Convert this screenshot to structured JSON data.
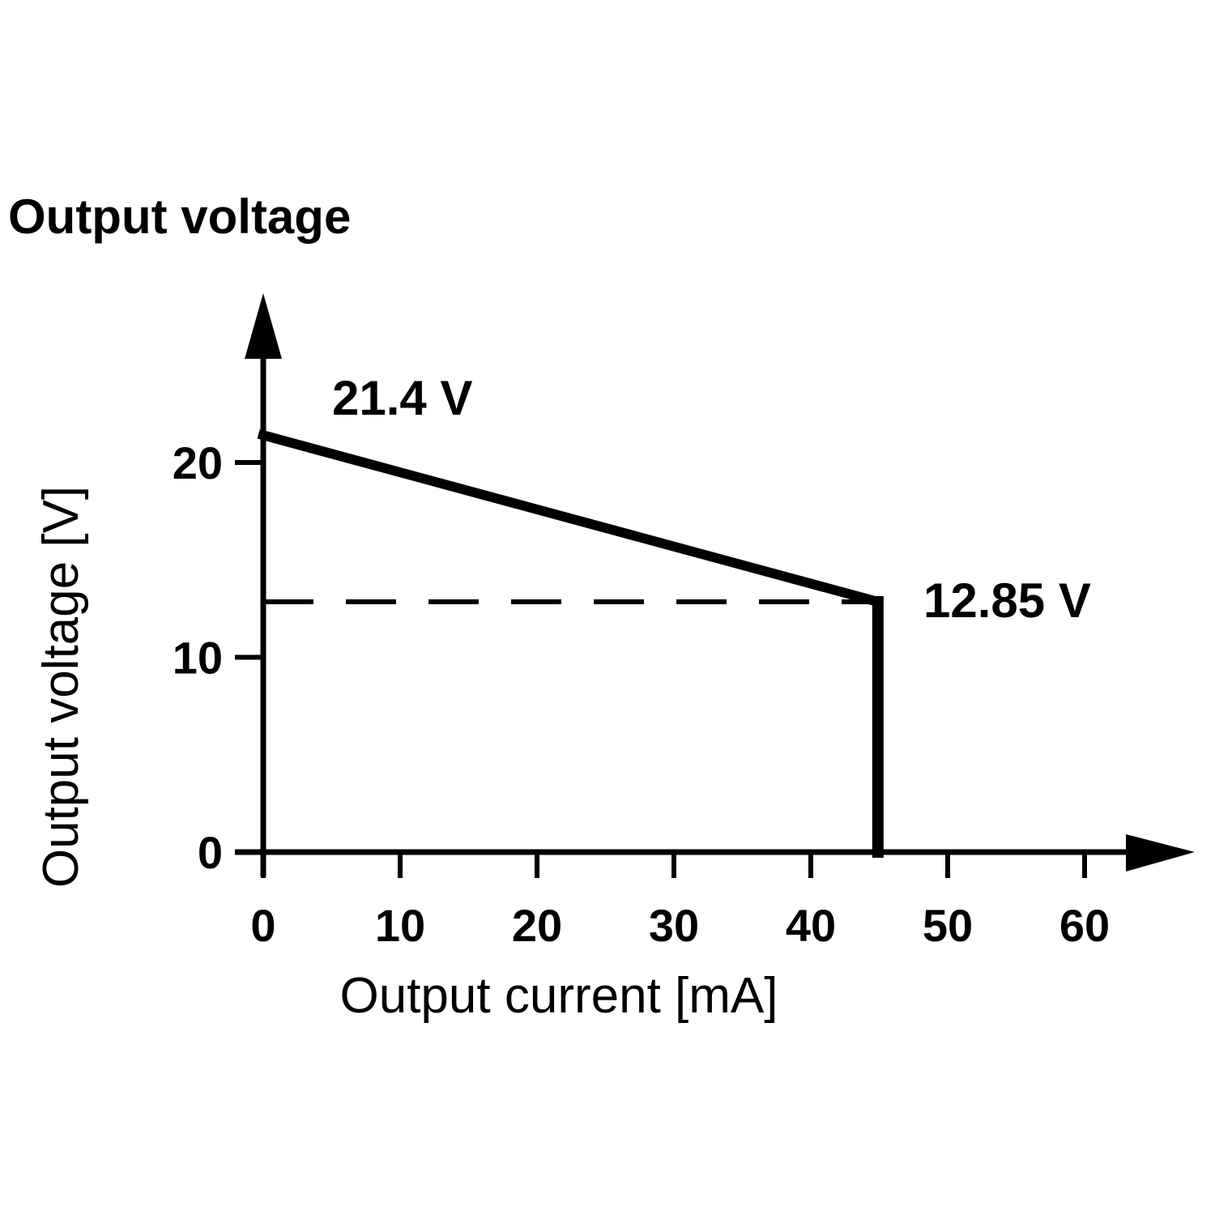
{
  "chart_data": {
    "type": "line",
    "title": "Output voltage",
    "xlabel": "Output current [mA]",
    "ylabel": "Output voltage [V]",
    "xlim": [
      0,
      60
    ],
    "ylim": [
      0,
      20
    ],
    "x_ticks": [
      0,
      10,
      20,
      30,
      40,
      50,
      60
    ],
    "y_ticks": [
      0,
      10,
      20
    ],
    "grid": false,
    "legend": "none",
    "series": [
      {
        "x": [
          0,
          44.9,
          44.9
        ],
        "y": [
          21.4,
          12.85,
          0
        ]
      }
    ],
    "reference_lines": [
      {
        "style": "dashed",
        "y": 12.85,
        "x_range": [
          0,
          44.9
        ]
      }
    ],
    "annotations": [
      {
        "text": "21.4 V",
        "x": 0,
        "y": 21.4
      },
      {
        "text": "12.85 V",
        "x": 44.9,
        "y": 12.85
      }
    ],
    "colors": {
      "line": "#000000",
      "axis": "#000000",
      "background": "#ffffff"
    }
  }
}
